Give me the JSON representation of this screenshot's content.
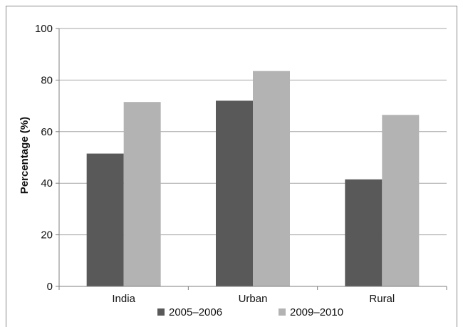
{
  "chart_data": {
    "type": "bar",
    "categories": [
      "India",
      "Urban",
      "Rural"
    ],
    "series": [
      {
        "name": "2005–2006",
        "values": [
          51.5,
          72,
          41.5
        ],
        "color": "#595959"
      },
      {
        "name": "2009–2010",
        "values": [
          71.5,
          83.5,
          66.5
        ],
        "color": "#b3b3b3"
      }
    ],
    "ylabel": "Percentage (%)",
    "xlabel": "",
    "ylim": [
      0,
      100
    ],
    "yticks": [
      0,
      20,
      40,
      60,
      80,
      100
    ],
    "grid": true,
    "legend": "bottom"
  }
}
